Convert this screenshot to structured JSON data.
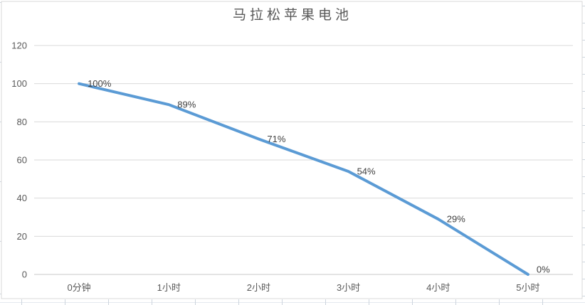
{
  "chart_data": {
    "type": "line",
    "title": "马拉松苹果电池",
    "categories": [
      "0分钟",
      "1小时",
      "2小时",
      "3小时",
      "4小时",
      "5小时"
    ],
    "values": [
      100,
      89,
      71,
      54,
      29,
      0
    ],
    "data_labels": [
      "100%",
      "89%",
      "71%",
      "54%",
      "29%",
      "0%"
    ],
    "xlabel": "",
    "ylabel": "",
    "ylim": [
      0,
      120
    ],
    "yticks": [
      0,
      20,
      40,
      60,
      80,
      100,
      120
    ],
    "grid": true,
    "legend": "none",
    "colors": {
      "line": "#5B9BD5",
      "gridline": "#D9D9D9",
      "axis_line": "#C9C9C9",
      "axis_labels": "#595959",
      "data_labels": "#404040",
      "title": "#595959",
      "chart_border": "#D9D9D9",
      "sheet_lines": "#CDD5DE"
    }
  }
}
